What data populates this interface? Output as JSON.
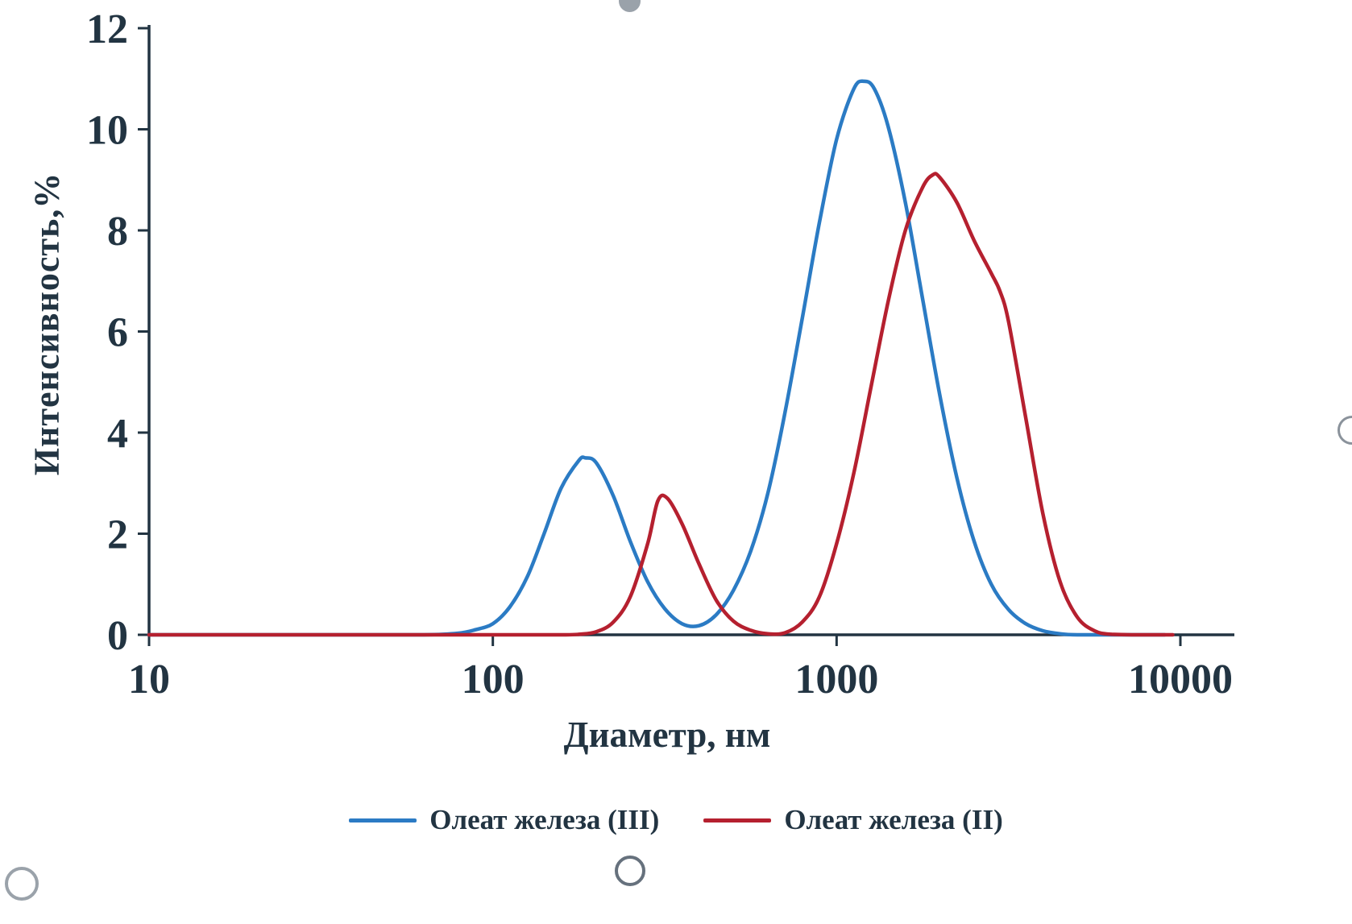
{
  "figure": {
    "background": "#ffffff",
    "text_color": "#223442"
  },
  "chart_data": {
    "type": "line",
    "title": "",
    "xlabel": "Диаметр, нм",
    "ylabel": "Интенсивность,%",
    "x_scale": "log",
    "xlim": [
      10,
      10000
    ],
    "ylim": [
      0,
      12
    ],
    "x_ticks": [
      10,
      100,
      1000,
      10000
    ],
    "x_tick_labels": [
      "10",
      "100",
      "1000",
      "10000"
    ],
    "y_ticks": [
      0,
      2,
      4,
      6,
      8,
      10,
      12
    ],
    "grid": false,
    "legend_position": "bottom",
    "axis_color": "#223442",
    "tick_label_color": "#223442",
    "series": [
      {
        "name": "Олеат железа (III)",
        "color": "#2b7bc4",
        "points": [
          [
            10,
            0
          ],
          [
            40,
            0
          ],
          [
            63,
            0
          ],
          [
            79,
            0.03
          ],
          [
            89,
            0.1
          ],
          [
            100,
            0.22
          ],
          [
            112,
            0.55
          ],
          [
            126,
            1.15
          ],
          [
            141,
            2.0
          ],
          [
            158,
            2.9
          ],
          [
            178,
            3.45
          ],
          [
            186,
            3.5
          ],
          [
            200,
            3.4
          ],
          [
            224,
            2.75
          ],
          [
            251,
            1.85
          ],
          [
            282,
            1.05
          ],
          [
            316,
            0.52
          ],
          [
            355,
            0.22
          ],
          [
            398,
            0.18
          ],
          [
            447,
            0.4
          ],
          [
            501,
            0.88
          ],
          [
            562,
            1.65
          ],
          [
            631,
            2.8
          ],
          [
            708,
            4.4
          ],
          [
            794,
            6.25
          ],
          [
            891,
            8.15
          ],
          [
            1000,
            9.8
          ],
          [
            1122,
            10.8
          ],
          [
            1202,
            10.95
          ],
          [
            1288,
            10.8
          ],
          [
            1413,
            10.05
          ],
          [
            1585,
            8.55
          ],
          [
            1778,
            6.65
          ],
          [
            1995,
            4.75
          ],
          [
            2239,
            3.1
          ],
          [
            2512,
            1.85
          ],
          [
            2818,
            1.0
          ],
          [
            3162,
            0.5
          ],
          [
            3548,
            0.22
          ],
          [
            3981,
            0.08
          ],
          [
            4467,
            0.02
          ],
          [
            5012,
            0
          ],
          [
            7000,
            0
          ],
          [
            9000,
            0
          ]
        ]
      },
      {
        "name": "Олеат железа (II)",
        "color": "#b5202f",
        "points": [
          [
            10,
            0
          ],
          [
            100,
            0
          ],
          [
            158,
            0
          ],
          [
            178,
            0.01
          ],
          [
            200,
            0.06
          ],
          [
            224,
            0.25
          ],
          [
            251,
            0.75
          ],
          [
            282,
            1.8
          ],
          [
            302,
            2.65
          ],
          [
            322,
            2.7
          ],
          [
            355,
            2.2
          ],
          [
            398,
            1.4
          ],
          [
            447,
            0.68
          ],
          [
            501,
            0.27
          ],
          [
            562,
            0.09
          ],
          [
            631,
            0.02
          ],
          [
            708,
            0.04
          ],
          [
            794,
            0.25
          ],
          [
            891,
            0.75
          ],
          [
            1000,
            1.8
          ],
          [
            1122,
            3.2
          ],
          [
            1259,
            4.9
          ],
          [
            1413,
            6.6
          ],
          [
            1585,
            8.0
          ],
          [
            1778,
            8.85
          ],
          [
            1905,
            9.1
          ],
          [
            1995,
            9.05
          ],
          [
            2239,
            8.55
          ],
          [
            2512,
            7.8
          ],
          [
            2818,
            7.15
          ],
          [
            2985,
            6.8
          ],
          [
            3162,
            6.2
          ],
          [
            3548,
            4.3
          ],
          [
            3981,
            2.4
          ],
          [
            4467,
            1.05
          ],
          [
            5012,
            0.35
          ],
          [
            5623,
            0.08
          ],
          [
            6310,
            0.01
          ],
          [
            8000,
            0
          ],
          [
            9500,
            0
          ]
        ]
      }
    ]
  },
  "legend": {
    "items": [
      {
        "label": "Олеат железа (III)",
        "color": "#2b7bc4"
      },
      {
        "label": "Олеат железа (II)",
        "color": "#b5202f"
      }
    ]
  }
}
